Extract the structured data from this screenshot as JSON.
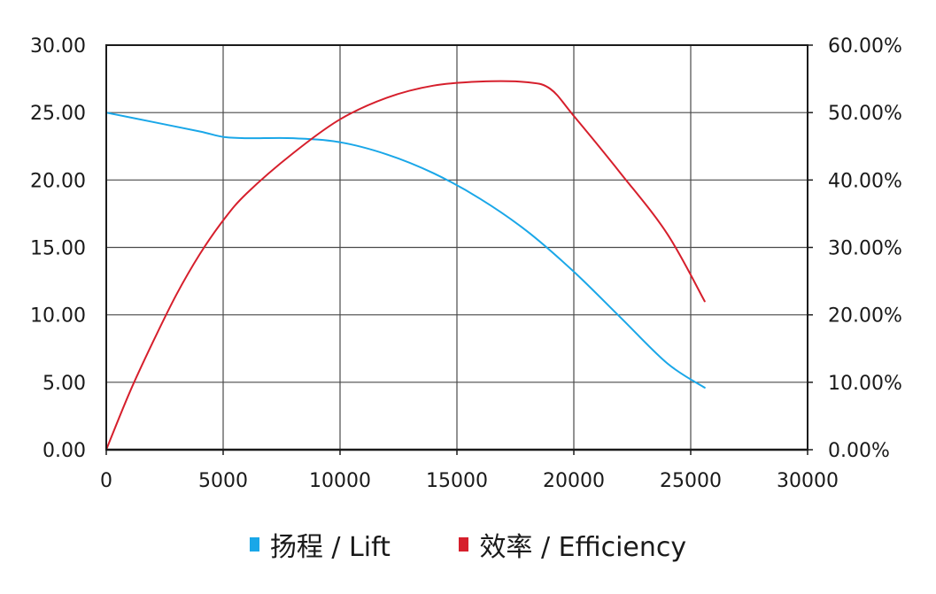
{
  "chart_data": {
    "type": "line",
    "xlim": [
      0,
      30000
    ],
    "xticks": [
      "0",
      "5000",
      "10000",
      "15000",
      "20000",
      "25000",
      "30000"
    ],
    "ylim_left": [
      0,
      30
    ],
    "yticks_left": [
      "0.00",
      "5.00",
      "10.00",
      "15.00",
      "20.00",
      "25.00",
      "30.00"
    ],
    "ylim_right": [
      0,
      60
    ],
    "yticks_right": [
      "0.00%",
      "10.00%",
      "20.00%",
      "30.00%",
      "40.00%",
      "50.00%",
      "60.00%"
    ],
    "grid": true,
    "legend_position": "bottom-center",
    "series": [
      {
        "name": "扬程 / Lift",
        "axis": "left",
        "color": "#1aa7e8",
        "x": [
          0,
          2000,
          4000,
          5000,
          6000,
          8000,
          10000,
          12000,
          14000,
          16000,
          18000,
          20000,
          22000,
          24000,
          25600
        ],
        "y": [
          25.0,
          24.3,
          23.6,
          23.2,
          23.1,
          23.1,
          22.8,
          21.9,
          20.5,
          18.6,
          16.2,
          13.2,
          9.8,
          6.4,
          4.6
        ]
      },
      {
        "name": "效率 / Efficiency",
        "axis": "right",
        "color": "#d61f2c",
        "x": [
          0,
          1000,
          2000,
          3000,
          4000,
          5000,
          6000,
          8000,
          10000,
          12000,
          14000,
          16000,
          18000,
          19000,
          20000,
          22000,
          24000,
          25600
        ],
        "y": [
          0,
          8.5,
          16.0,
          23.0,
          29.0,
          34.0,
          38.0,
          44.0,
          49.0,
          52.2,
          54.0,
          54.6,
          54.5,
          53.5,
          49.5,
          41.0,
          32.0,
          22.0
        ]
      }
    ]
  },
  "legend": {
    "lift_label": "扬程 / Lift",
    "efficiency_label": "效率 / Efficiency"
  }
}
